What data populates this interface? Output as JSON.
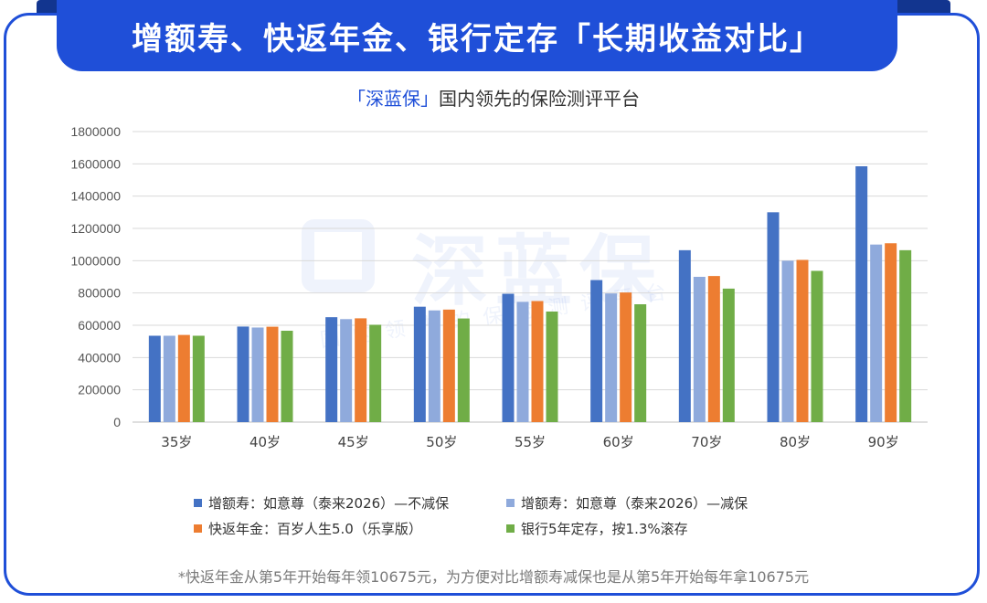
{
  "header": {
    "title": "增额寿、快返年金、银行定存「长期收益对比」",
    "subtitle_brand": "「深蓝保」",
    "subtitle_rest": "国内领先的保险测评平台"
  },
  "watermark": {
    "main": "深蓝保",
    "sub": "国内领先的保险测评平台"
  },
  "footnote": "*快返年金从第5年开始每年领10675元，为方便对比增额寿减保也是从第5年开始每年拿10675元",
  "chart_data": {
    "type": "bar",
    "categories": [
      "35岁",
      "40岁",
      "45岁",
      "50岁",
      "55岁",
      "60岁",
      "70岁",
      "80岁",
      "90岁"
    ],
    "series": [
      {
        "name": "增额寿：如意尊（泰来2026）—不减保",
        "color": "#4472c4",
        "values": [
          535000,
          592000,
          650000,
          715000,
          795000,
          880000,
          1065000,
          1300000,
          1585000
        ]
      },
      {
        "name": "增额寿：如意尊（泰来2026）—减保",
        "color": "#8faadc",
        "values": [
          535000,
          586000,
          638000,
          692000,
          745000,
          797000,
          900000,
          1000000,
          1100000
        ]
      },
      {
        "name": "快返年金：百岁人生5.0（乐享版）",
        "color": "#ed7d31",
        "values": [
          540000,
          591000,
          643000,
          697000,
          750000,
          803000,
          905000,
          1005000,
          1108000
        ]
      },
      {
        "name": "银行5年定存，按1.3%滚存",
        "color": "#70ad47",
        "values": [
          535000,
          566000,
          603000,
          642000,
          685000,
          730000,
          827000,
          937000,
          1065000
        ]
      }
    ],
    "yticks": [
      0,
      200000,
      400000,
      600000,
      800000,
      1000000,
      1200000,
      1400000,
      1600000,
      1800000
    ],
    "ylim": [
      0,
      1800000
    ],
    "grid": true,
    "legend_position": "bottom"
  }
}
